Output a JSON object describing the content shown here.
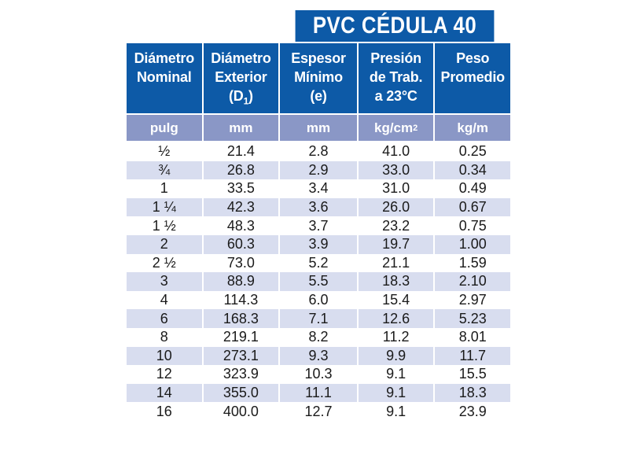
{
  "title": "PVC CÉDULA 40",
  "headers": [
    {
      "lines": [
        "Diámetro",
        "Nominal"
      ]
    },
    {
      "lines": [
        "Diámetro",
        "Exterior",
        "(D",
        "1",
        ")"
      ]
    },
    {
      "lines": [
        "Espesor",
        "Mínimo",
        "(e)"
      ]
    },
    {
      "lines": [
        "Presión",
        "de Trab.",
        "a 23°C"
      ]
    },
    {
      "lines": [
        "Peso",
        "Promedio"
      ]
    }
  ],
  "units": [
    "pulg",
    "mm",
    "mm",
    "kg/cm",
    "kg/m"
  ],
  "units_sup": "2",
  "colors": {
    "header": "#0d5aa7",
    "units": "#8a97c6",
    "alt_row": "#d8ddef"
  },
  "rows": [
    [
      "½",
      "21.4",
      "2.8",
      "41.0",
      "0.25"
    ],
    [
      "¾",
      "26.8",
      "2.9",
      "33.0",
      "0.34"
    ],
    [
      "1",
      "33.5",
      "3.4",
      "31.0",
      "0.49"
    ],
    [
      "1 ¼",
      "42.3",
      "3.6",
      "26.0",
      "0.67"
    ],
    [
      "1 ½",
      "48.3",
      "3.7",
      "23.2",
      "0.75"
    ],
    [
      "2",
      "60.3",
      "3.9",
      "19.7",
      "1.00"
    ],
    [
      "2 ½",
      "73.0",
      "5.2",
      "21.1",
      "1.59"
    ],
    [
      "3",
      "88.9",
      "5.5",
      "18.3",
      "2.10"
    ],
    [
      "4",
      "114.3",
      "6.0",
      "15.4",
      "2.97"
    ],
    [
      "6",
      "168.3",
      "7.1",
      "12.6",
      "5.23"
    ],
    [
      "8",
      "219.1",
      "8.2",
      "11.2",
      "8.01"
    ],
    [
      "10",
      "273.1",
      "9.3",
      "9.9",
      "11.7"
    ],
    [
      "12",
      "323.9",
      "10.3",
      "9.1",
      "15.5"
    ],
    [
      "14",
      "355.0",
      "11.1",
      "9.1",
      "18.3"
    ],
    [
      "16",
      "400.0",
      "12.7",
      "9.1",
      "23.9"
    ]
  ]
}
